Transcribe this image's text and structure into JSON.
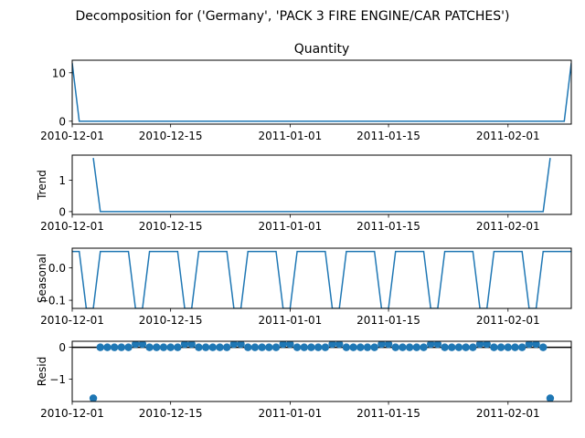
{
  "figure": {
    "suptitle": "Decomposition for ('Germany', 'PACK 3 FIRE ENGINE/CAR PATCHES')"
  },
  "colors": {
    "line": "#1f77b4",
    "axis": "#000000",
    "zero_line": "#000000",
    "background": "#ffffff"
  },
  "chart_data": [
    {
      "type": "line",
      "title": "Quantity",
      "ylabel": "",
      "x_axis": {
        "type": "date",
        "range": [
          "2010-12-01",
          "2011-02-10"
        ],
        "ticks": [
          "2010-12-01",
          "2010-12-15",
          "2011-01-01",
          "2011-01-15",
          "2011-02-01"
        ]
      },
      "ylim": [
        -0.6,
        12.6
      ],
      "yticks": [
        0,
        10
      ],
      "series": [
        {
          "points": [
            [
              "2010-12-01",
              12
            ],
            [
              "2010-12-02",
              0
            ],
            [
              "2011-02-09",
              0
            ],
            [
              "2011-02-10",
              12
            ]
          ]
        }
      ]
    },
    {
      "type": "line",
      "title": "",
      "ylabel": "Trend",
      "x_axis": {
        "type": "date",
        "range": [
          "2010-12-01",
          "2011-02-10"
        ],
        "ticks": [
          "2010-12-01",
          "2010-12-15",
          "2011-01-01",
          "2011-01-15",
          "2011-02-01"
        ]
      },
      "ylim": [
        -0.09,
        1.8
      ],
      "yticks": [
        0,
        1
      ],
      "series": [
        {
          "points": [
            [
              "2010-12-04",
              1.71
            ],
            [
              "2010-12-05",
              0
            ],
            [
              "2011-02-06",
              0
            ],
            [
              "2011-02-07",
              1.71
            ]
          ]
        }
      ]
    },
    {
      "type": "line",
      "title": "",
      "ylabel": "Seasonal",
      "x_axis": {
        "type": "date",
        "range": [
          "2010-12-01",
          "2011-02-10"
        ],
        "ticks": [
          "2010-12-01",
          "2010-12-15",
          "2011-01-01",
          "2011-01-15",
          "2011-02-01"
        ]
      },
      "ylim": [
        -0.125,
        0.06
      ],
      "yticks": [
        -0.1,
        0.0
      ],
      "pattern": {
        "period_days": 7,
        "first_date": "2010-12-01",
        "last_date": "2011-02-10",
        "weekly_values": [
          0.05,
          0.05,
          -0.125,
          -0.125,
          0.05,
          0.05,
          0.05
        ]
      }
    },
    {
      "type": "scatter",
      "title": "",
      "ylabel": "Resid",
      "x_axis": {
        "type": "date",
        "range": [
          "2010-12-01",
          "2011-02-10"
        ],
        "ticks": [
          "2010-12-01",
          "2010-12-15",
          "2011-01-01",
          "2011-01-15",
          "2011-02-01"
        ]
      },
      "ylim": [
        -1.7,
        0.19
      ],
      "yticks": [
        -1,
        0
      ],
      "baseline": 0,
      "residuals": {
        "first_date": "2010-12-04",
        "last_date": "2011-02-07",
        "default": 0.0,
        "outliers": [
          [
            "2010-12-04",
            -1.6
          ],
          [
            "2011-02-07",
            -1.6
          ]
        ],
        "weekly_peaks": {
          "dates": [
            "2010-12-11",
            "2010-12-18",
            "2010-12-25",
            "2011-01-01",
            "2011-01-08",
            "2011-01-15",
            "2011-01-22",
            "2011-01-29",
            "2011-02-05"
          ],
          "value": 0.1,
          "span_days": 2
        }
      }
    }
  ]
}
